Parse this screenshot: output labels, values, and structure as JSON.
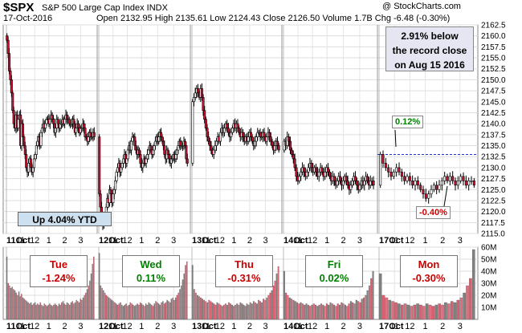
{
  "header": {
    "ticker": "$SPX",
    "name": "S&P 500 Large Cap Index  INDX",
    "date": "17-Oct-2016",
    "watermark": "@ StockCharts.com",
    "ohlc_text": "Open 2132.95  High 2135.61  Low 2124.43  Close 2126.50  Volume 1.7B  Chg -6.48 (-0.30%)"
  },
  "annotations": {
    "record_note_lines": [
      "2.91% below",
      "the record close",
      "on Aug 15 2016"
    ],
    "ytd": "Up 4.04% YTD",
    "up_label": "0.12%",
    "down_label": "-0.40%",
    "days": [
      {
        "day": "Tue",
        "change": "-1.24%",
        "color": "#cc0000"
      },
      {
        "day": "Wed",
        "change": "0.11%",
        "color": "#008000"
      },
      {
        "day": "Thu",
        "change": "-0.31%",
        "color": "#cc0000"
      },
      {
        "day": "Fri",
        "change": "0.02%",
        "color": "#008000"
      },
      {
        "day": "Mon",
        "change": "-0.30%",
        "color": "#cc0000"
      }
    ]
  },
  "chart_data": {
    "type": "candlestick",
    "price_axis": {
      "min": 2115,
      "max": 2162.5,
      "ticks": [
        2115.0,
        2117.5,
        2120.0,
        2122.5,
        2125.0,
        2127.5,
        2130.0,
        2132.5,
        2135.0,
        2137.5,
        2140.0,
        2142.5,
        2145.0,
        2147.5,
        2150.0,
        2152.5,
        2155.0,
        2157.5,
        2160.0,
        2162.5
      ]
    },
    "volume_axis": {
      "min": 0,
      "max": 60,
      "ticks": [
        "10M",
        "20M",
        "30M",
        "40M",
        "50M",
        "60M"
      ],
      "tick_values": [
        10,
        20,
        30,
        40,
        50,
        60
      ]
    },
    "x_ticks": [
      "11Oct",
      "11",
      "12",
      "1",
      "2",
      "3",
      "12Oct",
      "11",
      "12",
      "1",
      "2",
      "3",
      "13Oct",
      "11",
      "12",
      "1",
      "2",
      "3",
      "14Oct",
      "11",
      "12",
      "1",
      "2",
      "3",
      "17Oct",
      "11",
      "12",
      "1",
      "2",
      "3"
    ],
    "record_line": 2133.0,
    "days": [
      {
        "closes": [
          2159,
          2156,
          2152,
          2150,
          2147,
          2143,
          2140,
          2139,
          2142,
          2139,
          2141,
          2142,
          2135,
          2140,
          2137,
          2135,
          2133,
          2130,
          2129,
          2131,
          2132,
          2130,
          2129,
          2130,
          2132,
          2133,
          2135,
          2136,
          2137,
          2135,
          2138,
          2139,
          2140,
          2139,
          2140,
          2141,
          2141,
          2140,
          2141,
          2142,
          2141,
          2140,
          2138,
          2139,
          2141,
          2140,
          2139,
          2140,
          2140,
          2141,
          2140,
          2141,
          2142,
          2141,
          2141,
          2140,
          2140,
          2140,
          2141,
          2140,
          2138,
          2139,
          2140,
          2139,
          2138,
          2139,
          2139,
          2140,
          2139,
          2137,
          2137,
          2136,
          2137,
          2138,
          2137,
          2137,
          2138,
          2137
        ],
        "volumes": [
          52,
          30,
          28,
          26,
          27,
          25,
          24,
          22,
          20,
          23,
          19,
          21,
          18,
          17,
          16,
          15,
          14,
          13,
          14,
          12,
          13,
          14,
          12,
          13,
          12,
          14,
          12,
          11,
          13,
          12,
          11,
          12,
          13,
          12,
          11,
          12,
          13,
          12,
          11,
          13,
          12,
          14,
          15,
          13,
          12,
          14,
          13,
          12,
          14,
          15,
          13,
          14,
          16,
          15,
          14,
          17,
          16,
          18,
          20,
          22,
          25,
          28,
          32,
          38,
          46,
          52
        ]
      },
      {
        "closes": [
          2124,
          2121,
          2119,
          2117,
          2118,
          2119,
          2121,
          2123,
          2122,
          2125,
          2124,
          2122,
          2124,
          2125,
          2127,
          2129,
          2130,
          2131,
          2129,
          2130,
          2131,
          2132,
          2133,
          2131,
          2132,
          2134,
          2135,
          2134,
          2136,
          2137,
          2137,
          2135,
          2134,
          2133,
          2134,
          2133,
          2131,
          2130,
          2131,
          2132,
          2131,
          2132,
          2133,
          2134,
          2135,
          2134,
          2133,
          2134,
          2135,
          2136,
          2137,
          2136,
          2137,
          2138,
          2137,
          2136,
          2135,
          2133,
          2132,
          2134,
          2133,
          2132,
          2131,
          2132,
          2132,
          2133,
          2132,
          2133,
          2134,
          2135,
          2136,
          2135,
          2135,
          2135,
          2136,
          2135,
          2132,
          2131
        ],
        "volumes": [
          55,
          28,
          26,
          24,
          22,
          20,
          19,
          18,
          17,
          16,
          15,
          14,
          13,
          12,
          13,
          14,
          12,
          11,
          12,
          13,
          11,
          12,
          14,
          13,
          12,
          11,
          12,
          13,
          12,
          14,
          13,
          12,
          11,
          13,
          12,
          14,
          13,
          12,
          11,
          13,
          15,
          14,
          13,
          12,
          14,
          15,
          13,
          14,
          16,
          15,
          14,
          17,
          18,
          16,
          18,
          20,
          22,
          25,
          28,
          33,
          38,
          45,
          48
        ]
      },
      {
        "closes": [
          2145,
          2146,
          2147,
          2148,
          2147,
          2146,
          2148,
          2146,
          2143,
          2141,
          2139,
          2137,
          2136,
          2135,
          2134,
          2133,
          2134,
          2135,
          2136,
          2137,
          2136,
          2138,
          2139,
          2138,
          2139,
          2140,
          2139,
          2138,
          2137,
          2138,
          2139,
          2140,
          2139,
          2140,
          2139,
          2138,
          2137,
          2138,
          2137,
          2136,
          2137,
          2136,
          2137,
          2138,
          2137,
          2136,
          2135,
          2136,
          2137,
          2138,
          2138,
          2137,
          2137,
          2138,
          2137,
          2136,
          2137,
          2138,
          2137,
          2136,
          2135,
          2134,
          2135,
          2136,
          2135,
          2134
        ],
        "volumes": [
          45,
          25,
          22,
          20,
          19,
          18,
          17,
          16,
          15,
          14,
          16,
          15,
          14,
          13,
          12,
          14,
          13,
          12,
          11,
          12,
          13,
          12,
          14,
          13,
          12,
          11,
          12,
          13,
          12,
          14,
          13,
          12,
          11,
          13,
          12,
          14,
          13,
          15,
          14,
          13,
          16,
          15,
          14,
          17,
          16,
          18,
          20,
          22,
          24,
          28,
          32,
          38,
          44
        ]
      },
      {
        "closes": [
          2136,
          2135,
          2137,
          2136,
          2134,
          2133,
          2132,
          2130,
          2128,
          2127,
          2128,
          2129,
          2130,
          2129,
          2128,
          2129,
          2130,
          2131,
          2130,
          2129,
          2130,
          2129,
          2128,
          2129,
          2130,
          2129,
          2128,
          2129,
          2130,
          2129,
          2128,
          2127,
          2128,
          2127,
          2126,
          2127,
          2128,
          2127,
          2126,
          2127,
          2128,
          2127,
          2126,
          2125,
          2126,
          2127,
          2128,
          2127,
          2126,
          2125,
          2126,
          2127,
          2126,
          2127,
          2128,
          2127,
          2126,
          2127,
          2127,
          2126
        ],
        "volumes": [
          40,
          22,
          20,
          18,
          17,
          16,
          15,
          14,
          13,
          14,
          13,
          12,
          13,
          12,
          11,
          12,
          13,
          12,
          11,
          12,
          13,
          12,
          11,
          13,
          12,
          14,
          13,
          12,
          11,
          13,
          12,
          14,
          13,
          12,
          11,
          13,
          15,
          14,
          13,
          16,
          15,
          14,
          17,
          18,
          20,
          24,
          28,
          34,
          40
        ]
      },
      {
        "closes": [
          2133,
          2131,
          2130,
          2129,
          2128,
          2129,
          2130,
          2129,
          2128,
          2127,
          2128,
          2127,
          2126,
          2127,
          2126,
          2125,
          2124,
          2123,
          2124,
          2125,
          2126,
          2125,
          2126,
          2127,
          2128,
          2127,
          2128,
          2127,
          2126,
          2127,
          2128,
          2127,
          2126,
          2127,
          2127,
          2126
        ],
        "volumes": [
          38,
          20,
          18,
          16,
          15,
          14,
          13,
          12,
          13,
          12,
          11,
          12,
          13,
          12,
          11,
          13,
          12,
          11,
          12,
          13,
          12,
          14,
          13,
          15,
          14,
          16,
          18,
          22,
          28,
          34,
          58
        ]
      }
    ]
  }
}
